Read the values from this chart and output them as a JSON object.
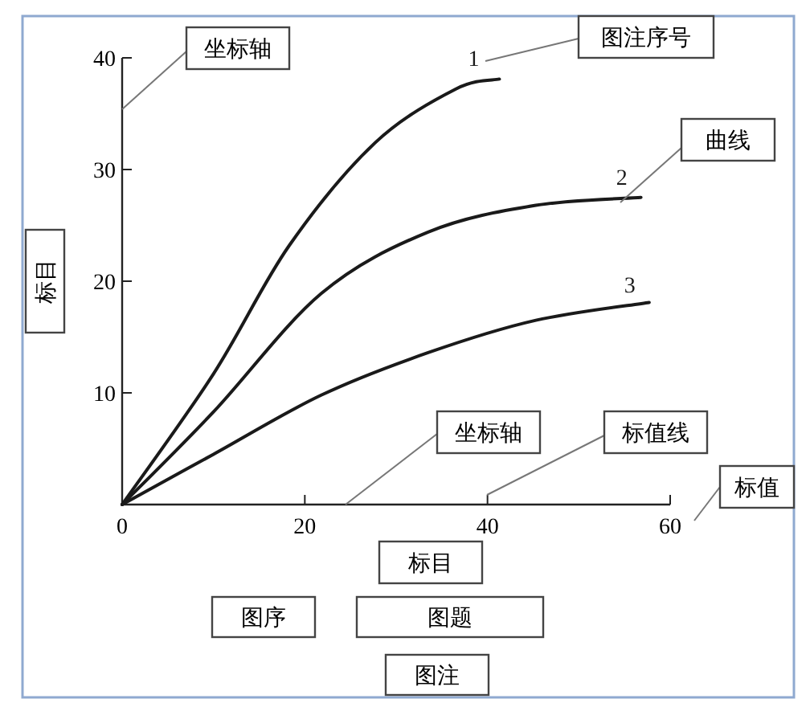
{
  "chart_data": {
    "type": "line",
    "xlabel": "标目",
    "ylabel": "标目",
    "series": [
      {
        "name": "1",
        "color": "#1a1a1a",
        "x": [
          0,
          10,
          18.3,
          27.7,
          36.5,
          41.3
        ],
        "values": [
          0,
          11.7,
          23.2,
          32.4,
          37.2,
          38.1
        ]
      },
      {
        "name": "2",
        "color": "#1a1a1a",
        "x": [
          0,
          10,
          21.8,
          33.5,
          45.3,
          56.8
        ],
        "values": [
          0,
          8.3,
          18.9,
          24.4,
          26.8,
          27.5
        ]
      },
      {
        "name": "3",
        "color": "#1a1a1a",
        "x": [
          0,
          10,
          21.8,
          33.5,
          45.3,
          57.7
        ],
        "values": [
          0,
          4.5,
          9.8,
          13.6,
          16.5,
          18.1
        ]
      }
    ],
    "xlim": [
      0,
      60
    ],
    "xticks": [
      0,
      20,
      40,
      60
    ],
    "ylim": [
      0,
      40
    ],
    "yticks": [
      10,
      20,
      30,
      40
    ],
    "grid": false,
    "marker": "none",
    "line_style": "solid",
    "annotations": [
      "坐标轴",
      "图注序号",
      "曲线",
      "坐标轴",
      "标值线",
      "标值",
      "图序",
      "图题",
      "图注"
    ]
  }
}
